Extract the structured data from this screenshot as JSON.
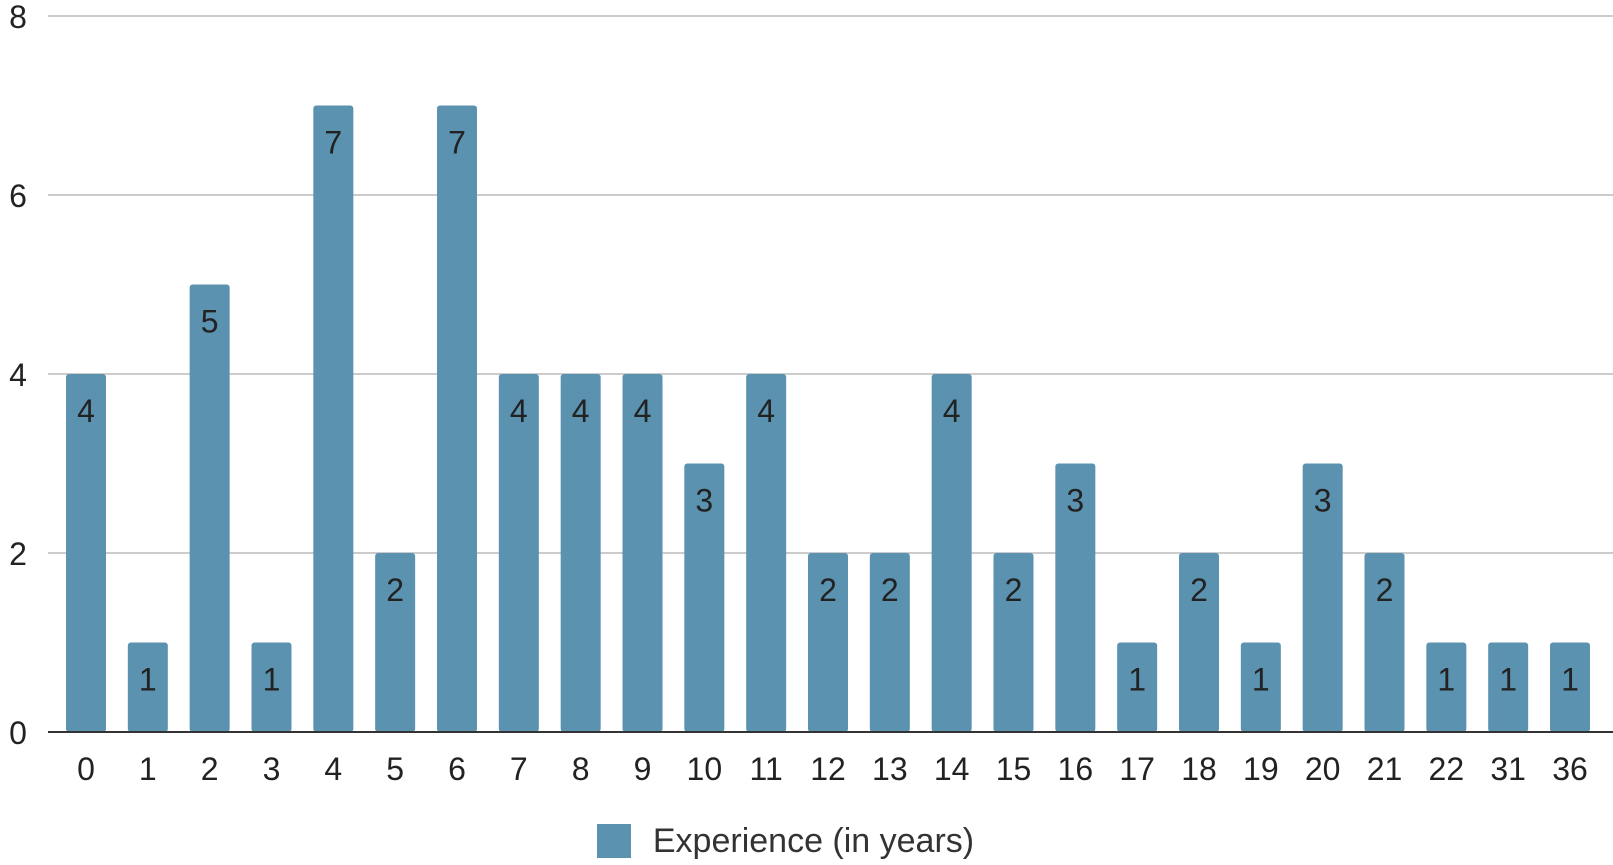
{
  "chart_data": {
    "type": "bar",
    "categories": [
      "0",
      "1",
      "2",
      "3",
      "4",
      "5",
      "6",
      "7",
      "8",
      "9",
      "10",
      "11",
      "12",
      "13",
      "14",
      "15",
      "16",
      "17",
      "18",
      "19",
      "20",
      "21",
      "22",
      "31",
      "36"
    ],
    "series": [
      {
        "name": "Experience (in years)",
        "values": [
          4,
          1,
          5,
          1,
          7,
          2,
          7,
          4,
          4,
          4,
          3,
          4,
          2,
          2,
          4,
          2,
          3,
          1,
          2,
          1,
          3,
          2,
          1,
          1,
          1
        ]
      }
    ],
    "ylim": [
      0,
      8
    ],
    "yticks": [
      0,
      2,
      4,
      6,
      8
    ],
    "grid": true,
    "legend_position": "bottom",
    "data_labels": true,
    "colors": {
      "bar": "#5b92b0",
      "grid": "#cccccc",
      "axis": "#333333",
      "text": "#222222"
    }
  }
}
